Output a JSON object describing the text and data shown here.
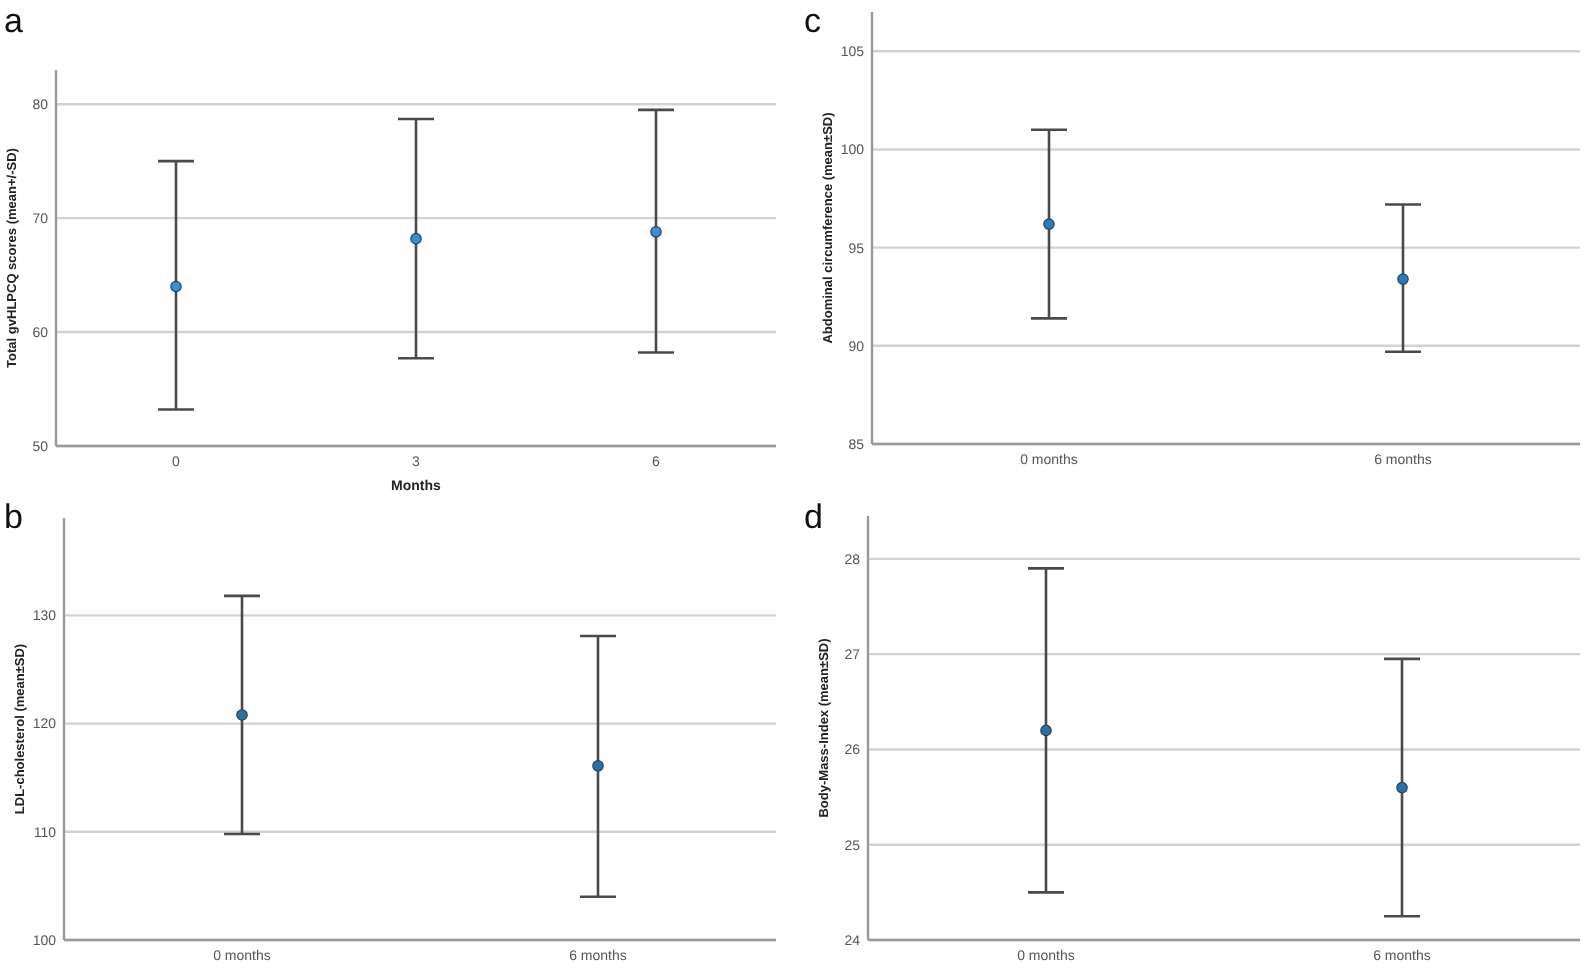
{
  "chart_data": [
    {
      "type": "scatter",
      "title": "a",
      "xlabel": "Months",
      "ylabel": "Total gvHLPCQ scores (mean+/-SD)",
      "categories": [
        "0",
        "3",
        "6"
      ],
      "values": [
        64,
        68.2,
        68.8
      ],
      "errors": [
        [
          53.2,
          75
        ],
        [
          57.7,
          78.7
        ],
        [
          58.2,
          79.5
        ]
      ],
      "color": "#3a8fd0",
      "ylim": [
        50,
        83
      ],
      "yticks": [
        50,
        60,
        70,
        80
      ],
      "grid": "y",
      "marker": "circle"
    },
    {
      "type": "scatter",
      "title": "b",
      "ylabel": "LDL-cholesterol (mean±SD)",
      "categories": [
        "0 months",
        "6 months"
      ],
      "values": [
        120.8,
        116.1
      ],
      "errors": [
        [
          109.8,
          131.8
        ],
        [
          104,
          128.1
        ]
      ],
      "color": "#2f6e9e",
      "ylim": [
        100,
        139
      ],
      "yticks": [
        100,
        110,
        120,
        130
      ],
      "grid": "y",
      "marker": "circle"
    },
    {
      "type": "scatter",
      "title": "c",
      "ylabel": "Abdominal circumference (mean±SD)",
      "categories": [
        "0 months",
        "6 months"
      ],
      "values": [
        96.2,
        93.4
      ],
      "errors": [
        [
          91.4,
          101
        ],
        [
          89.7,
          97.2
        ]
      ],
      "color": "#2f7ab8",
      "ylim": [
        85,
        107
      ],
      "yticks": [
        85,
        90,
        95,
        100,
        105
      ],
      "grid": "y",
      "marker": "circle"
    },
    {
      "type": "scatter",
      "title": "d",
      "ylabel": "Body-Mass-Index (mean±SD)",
      "categories": [
        "0 months",
        "6 months"
      ],
      "values": [
        26.2,
        25.6
      ],
      "errors": [
        [
          24.5,
          27.9
        ],
        [
          24.25,
          26.95
        ]
      ],
      "color": "#2f6e9e",
      "ylim": [
        24,
        28.45
      ],
      "yticks": [
        24,
        25,
        26,
        27,
        28
      ],
      "grid": "y",
      "marker": "circle"
    }
  ]
}
